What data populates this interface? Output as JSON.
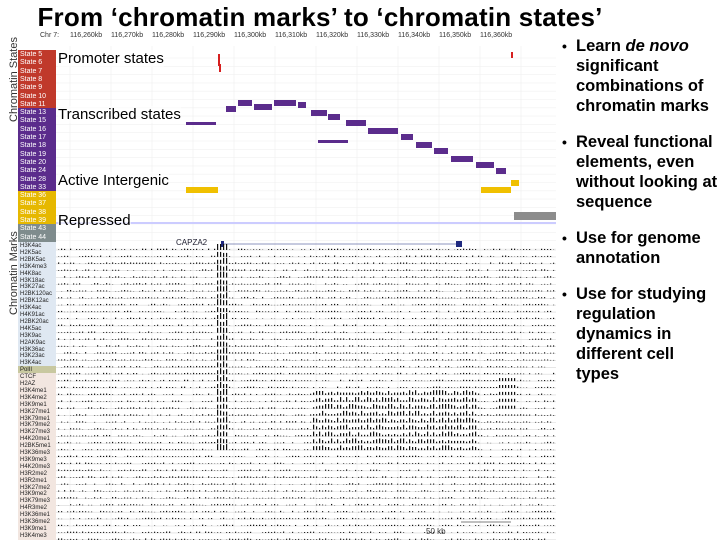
{
  "title": "From ‘chromatin marks’ to ‘chromatin states’",
  "browser": {
    "section_labels": [
      "Chromatin States",
      "Chromatin Marks"
    ],
    "ruler_labels": [
      "Chr 7:",
      "116,260kb",
      "116,270kb",
      "116,280kb",
      "116,290kb",
      "116,300kb",
      "116,310kb",
      "116,320kb",
      "116,330kb",
      "116,340kb",
      "116,350kb",
      "116,360kb"
    ],
    "state_labels": [
      "State 5",
      "State 6",
      "State 7",
      "State 8",
      "State 9",
      "State 10",
      "State 11",
      "State 13",
      "State 15",
      "State 16",
      "State 17",
      "State 18",
      "State 19",
      "State 20",
      "State 24",
      "State 28",
      "State 33",
      "State 36",
      "State 37",
      "State 38",
      "State 39",
      "State 43",
      "State 44",
      "State 51"
    ],
    "state_colors": [
      "#c0392b",
      "#c0392b",
      "#c0392b",
      "#c0392b",
      "#c0392b",
      "#c0392b",
      "#c0392b",
      "#5b2c8c",
      "#5b2c8c",
      "#5b2c8c",
      "#5b2c8c",
      "#5b2c8c",
      "#5b2c8c",
      "#5b2c8c",
      "#5b2c8c",
      "#5b2c8c",
      "#5b2c8c",
      "#e6b800",
      "#e6b800",
      "#e6b800",
      "#e6b800",
      "#7f8c8d",
      "#7f8c8d",
      "#7f8c8d"
    ],
    "mark_labels": [
      "H3K4ac",
      "H2K5ac",
      "H2BK5ac",
      "H3K4me3",
      "H4K8ac",
      "H3K18ac",
      "H3K27ac",
      "H2BK120ac",
      "H2BK12ac",
      "H3K4ac",
      "H4K91ac",
      "H2BK20ac",
      "H4K5ac",
      "H3K9ac",
      "H2AK9ac",
      "H3K36ac",
      "H3K23ac",
      "H3K4ac",
      "PolII",
      "CTCF",
      "H2AZ",
      "H3K4me1",
      "H3K4me2",
      "H3K9me1",
      "H3K27me1",
      "H3K79me1",
      "H3K79me2",
      "H3K27me3",
      "H4K20me1",
      "H2BK5me1",
      "H3K36me3",
      "H3K9me3",
      "H4K20me3",
      "H3R2me2",
      "H3R2me1",
      "H3K27me2",
      "H3K9me2",
      "H3K79me3",
      "H4R3me2",
      "H3K36me1",
      "H3K36me2",
      "H3K9me1",
      "H3K4me3"
    ],
    "overlays": [
      "Promoter states",
      "Transcribed states",
      "Active Intergenic",
      "Repressed"
    ],
    "gene_name": "CAPZA2",
    "scale_label": "50 kb"
  },
  "bullets": [
    {
      "lead": "Learn ",
      "emph": "de novo",
      "rest": " significant combinations of chromatin marks"
    },
    {
      "lead": "Reveal functional elements, even without looking at sequence",
      "emph": "",
      "rest": ""
    },
    {
      "lead": "Use for genome annotation",
      "emph": "",
      "rest": ""
    },
    {
      "lead": "Use for studying regulation dynamics in different cell types",
      "emph": "",
      "rest": ""
    }
  ],
  "colors": {
    "promoter": "#d62020",
    "transcribed": "#5b2c8c",
    "intergenic": "#f0c000",
    "repressed": "#8c8c8c",
    "signal": "#111111"
  }
}
